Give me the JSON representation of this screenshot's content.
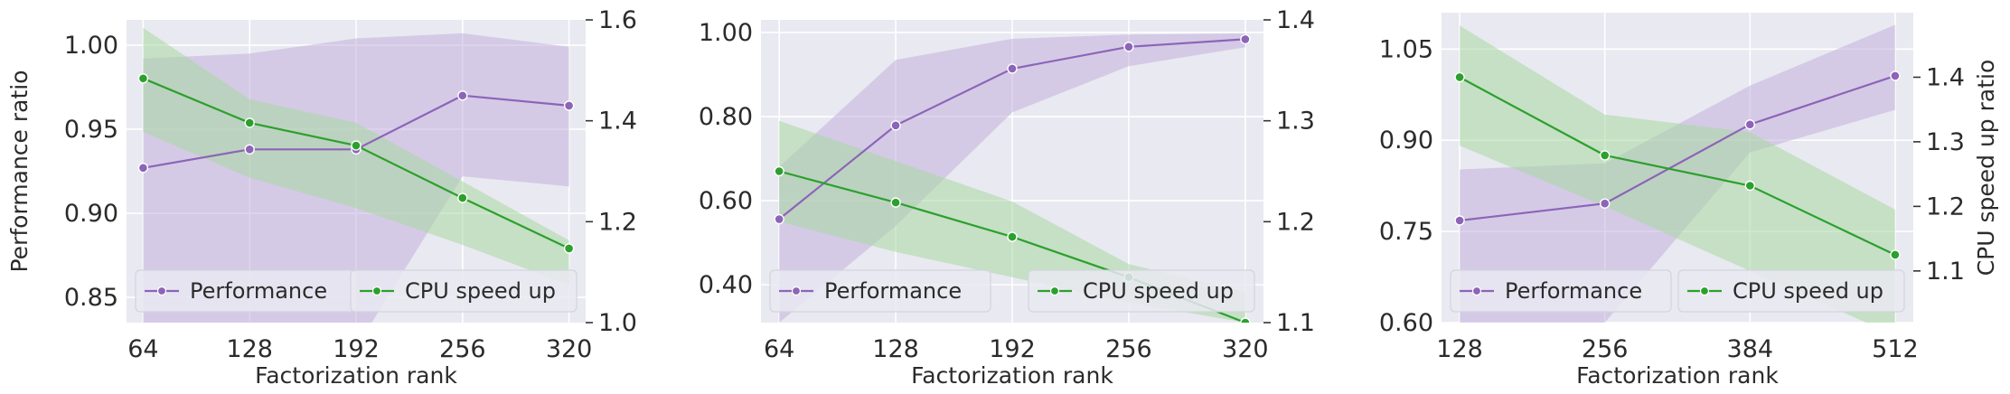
{
  "colors": {
    "performance": "#8c64b8",
    "performance_band": "#c3b1dc",
    "cpu": "#2ca02c",
    "cpu_band": "#a8d8a0",
    "panel_bg": "#e9e9f1",
    "grid": "#ffffff"
  },
  "chart_data": [
    {
      "type": "line",
      "xlabel": "Factorization rank",
      "ylabel_left": "Performance ratio",
      "ylabel_right": "",
      "x": [
        64,
        128,
        192,
        256,
        320
      ],
      "x_ticks": [
        "64",
        "128",
        "192",
        "256",
        "320"
      ],
      "xlim": [
        54,
        330
      ],
      "ylim_left": [
        0.835,
        1.015
      ],
      "yticks_left": [
        "0.85",
        "0.90",
        "0.95",
        "1.00"
      ],
      "ylim_right": [
        1.0,
        1.6
      ],
      "yticks_right": [
        "1.0",
        "1.2",
        "1.4",
        "1.6"
      ],
      "legend": {
        "performance": "Performance",
        "cpu": "CPU speed up",
        "placement": "bottom"
      },
      "series": [
        {
          "name": "Performance",
          "axis": "left",
          "values": [
            0.927,
            0.938,
            0.938,
            0.97,
            0.964
          ],
          "lower": [
            0.82,
            0.82,
            0.82,
            0.922,
            0.916
          ],
          "upper": [
            0.992,
            0.995,
            1.004,
            1.007,
            0.999
          ]
        },
        {
          "name": "CPU speed up",
          "axis": "right",
          "values": [
            1.484,
            1.396,
            1.351,
            1.247,
            1.147
          ],
          "lower": [
            1.378,
            1.287,
            1.227,
            1.154,
            1.075
          ],
          "upper": [
            1.584,
            1.443,
            1.396,
            1.28,
            1.163
          ]
        }
      ]
    },
    {
      "type": "line",
      "xlabel": "Factorization rank",
      "ylabel_left": "",
      "ylabel_right": "",
      "x": [
        64,
        128,
        192,
        256,
        320
      ],
      "x_ticks": [
        "64",
        "128",
        "192",
        "256",
        "320"
      ],
      "xlim": [
        54,
        330
      ],
      "ylim_left": [
        0.31,
        1.03
      ],
      "yticks_left": [
        "0.40",
        "0.60",
        "0.80",
        "1.00"
      ],
      "ylim_right": [
        1.1,
        1.4
      ],
      "yticks_right": [
        "1.1",
        "1.2",
        "1.3",
        "1.4"
      ],
      "legend": {
        "performance": "Performance",
        "cpu": "CPU speed up",
        "placement": "bottom"
      },
      "series": [
        {
          "name": "Performance",
          "axis": "left",
          "values": [
            0.556,
            0.779,
            0.914,
            0.966,
            0.984
          ],
          "lower": [
            0.31,
            0.54,
            0.81,
            0.92,
            0.965
          ],
          "upper": [
            0.68,
            0.935,
            0.985,
            0.995,
            0.998
          ]
        },
        {
          "name": "CPU speed up",
          "axis": "right",
          "values": [
            1.25,
            1.219,
            1.185,
            1.145,
            1.1
          ],
          "lower": [
            1.2,
            1.17,
            1.145,
            1.12,
            1.1
          ],
          "upper": [
            1.3,
            1.26,
            1.22,
            1.158,
            1.13
          ]
        }
      ]
    },
    {
      "type": "line",
      "xlabel": "Factorization rank",
      "ylabel_left": "",
      "ylabel_right": "CPU speed up ratio",
      "x": [
        128,
        256,
        384,
        512
      ],
      "x_ticks": [
        "128",
        "256",
        "384",
        "512"
      ],
      "xlim": [
        112,
        528
      ],
      "ylim_left": [
        0.6,
        1.11
      ],
      "yticks_left": [
        "0.60",
        "0.75",
        "0.90",
        "1.05"
      ],
      "ylim_right": [
        1.02,
        1.5
      ],
      "yticks_right": [
        "1.1",
        "1.2",
        "1.3",
        "1.4"
      ],
      "legend": {
        "performance": "Performance",
        "cpu": "CPU speed up",
        "placement": "bottom"
      },
      "series": [
        {
          "name": "Performance",
          "axis": "left",
          "values": [
            0.768,
            0.796,
            0.926,
            1.006
          ],
          "lower": [
            0.6,
            0.6,
            0.88,
            0.95
          ],
          "upper": [
            0.852,
            0.862,
            0.99,
            1.09
          ]
        },
        {
          "name": "CPU speed up",
          "axis": "right",
          "values": [
            1.4,
            1.279,
            1.232,
            1.125
          ],
          "lower": [
            1.294,
            1.2,
            1.1,
            1.0
          ],
          "upper": [
            1.48,
            1.342,
            1.315,
            1.195
          ]
        }
      ]
    }
  ]
}
